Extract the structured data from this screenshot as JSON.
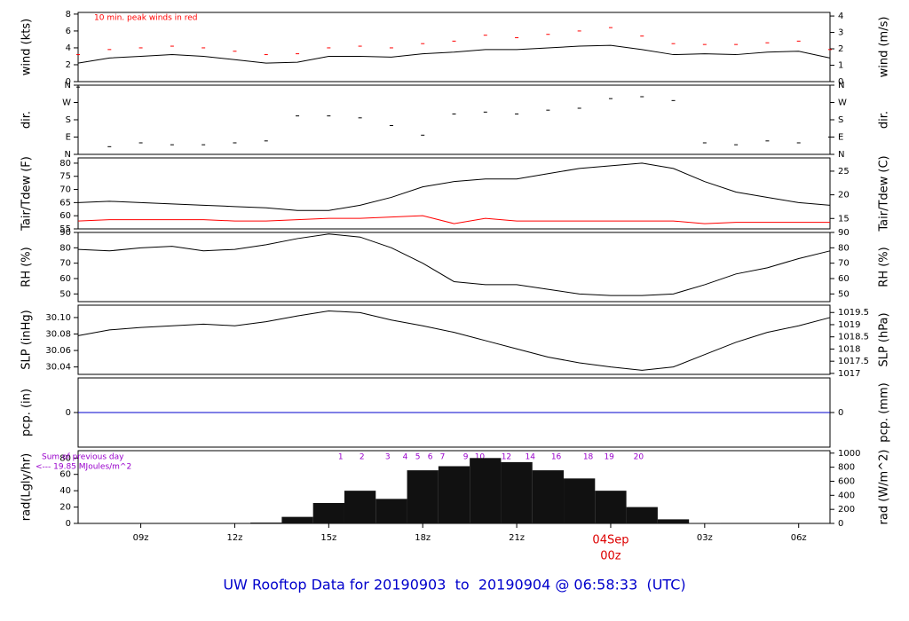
{
  "chart_data": [
    {
      "type": "line",
      "ylabel": "wind (kts)",
      "y2label": "wind (m/s)",
      "annotation": "10 min. peak winds in red",
      "x": [
        7,
        8,
        9,
        10,
        11,
        12,
        13,
        14,
        15,
        16,
        17,
        18,
        19,
        20,
        21,
        22,
        23,
        24,
        25,
        26,
        27,
        28,
        29,
        30,
        31
      ],
      "xlim": [
        7,
        31
      ],
      "ylim": [
        0,
        8.2
      ],
      "yticks": [
        0,
        2,
        4,
        6,
        8
      ],
      "y2lim": [
        0,
        4.22
      ],
      "y2ticks": [
        0,
        1,
        2,
        3,
        4
      ],
      "series": [
        {
          "style": "line",
          "color": "#000000",
          "values": [
            2.2,
            2.8,
            3.0,
            3.2,
            3.0,
            2.6,
            2.2,
            2.3,
            3.0,
            3.0,
            2.9,
            3.3,
            3.5,
            3.8,
            3.8,
            4.0,
            4.2,
            4.3,
            3.8,
            3.2,
            3.3,
            3.2,
            3.5,
            3.6,
            2.8
          ]
        },
        {
          "style": "dash",
          "color": "#ff0000",
          "values": [
            3.2,
            3.8,
            4.0,
            4.2,
            4.0,
            3.6,
            3.2,
            3.3,
            4.0,
            4.2,
            4.0,
            4.5,
            4.8,
            5.5,
            5.2,
            5.6,
            6.0,
            6.4,
            5.4,
            4.5,
            4.4,
            4.4,
            4.6,
            4.8,
            3.8
          ]
        }
      ]
    },
    {
      "type": "scatter",
      "ylabel": "dir.",
      "y2label": "dir.",
      "x": [
        7,
        8,
        9,
        10,
        11,
        12,
        13,
        14,
        15,
        16,
        17,
        18,
        19,
        20,
        21,
        22,
        23,
        24,
        25,
        26,
        27,
        28,
        29,
        30,
        31
      ],
      "xlim": [
        7,
        31
      ],
      "ylim": [
        0,
        360
      ],
      "yticks": [
        {
          "value": 0,
          "label": "N"
        },
        {
          "value": 90,
          "label": "E"
        },
        {
          "value": 180,
          "label": "S"
        },
        {
          "value": 270,
          "label": "W"
        },
        {
          "value": 360,
          "label": "N"
        }
      ],
      "y2lim": [
        0,
        360
      ],
      "y2ticks": [
        {
          "value": 0,
          "label": "N"
        },
        {
          "value": 90,
          "label": "E"
        },
        {
          "value": 180,
          "label": "S"
        },
        {
          "value": 270,
          "label": "W"
        },
        {
          "value": 360,
          "label": "N"
        }
      ],
      "series": [
        {
          "style": "dash",
          "color": "#000000",
          "values": [
            350,
            40,
            60,
            50,
            50,
            60,
            70,
            200,
            200,
            190,
            150,
            100,
            210,
            220,
            210,
            230,
            240,
            290,
            300,
            280,
            60,
            50,
            70,
            60,
            90
          ]
        }
      ]
    },
    {
      "type": "line",
      "ylabel": "Tair/Tdew (F)",
      "y2label": "Tair/Tdew (C)",
      "x": [
        7,
        8,
        9,
        10,
        11,
        12,
        13,
        14,
        15,
        16,
        17,
        18,
        19,
        20,
        21,
        22,
        23,
        24,
        25,
        26,
        27,
        28,
        29,
        30,
        31
      ],
      "xlim": [
        7,
        31
      ],
      "ylim": [
        55,
        82
      ],
      "yticks": [
        55,
        60,
        65,
        70,
        75,
        80
      ],
      "y2lim": [
        12.8,
        27.8
      ],
      "y2ticks": [
        15,
        20,
        25
      ],
      "series": [
        {
          "style": "line",
          "color": "#000000",
          "values": [
            65,
            65.5,
            65,
            64.5,
            64,
            63.5,
            63,
            62,
            62,
            64,
            67,
            71,
            73,
            74,
            74,
            76,
            78,
            79,
            80,
            78,
            73,
            69,
            67,
            65,
            64
          ]
        },
        {
          "style": "line",
          "color": "#ff0000",
          "values": [
            58,
            58.5,
            58.5,
            58.5,
            58.5,
            58,
            58,
            58.5,
            59,
            59,
            59.5,
            60,
            57,
            59,
            58,
            58,
            58,
            58,
            58,
            58,
            57,
            57.5,
            57.5,
            57.5,
            57.5
          ]
        }
      ]
    },
    {
      "type": "line",
      "ylabel": "RH (%)",
      "y2label": "RH (%)",
      "x": [
        7,
        8,
        9,
        10,
        11,
        12,
        13,
        14,
        15,
        16,
        17,
        18,
        19,
        20,
        21,
        22,
        23,
        24,
        25,
        26,
        27,
        28,
        29,
        30,
        31
      ],
      "xlim": [
        7,
        31
      ],
      "ylim": [
        45,
        90
      ],
      "yticks": [
        50,
        60,
        70,
        80,
        90
      ],
      "y2lim": [
        45,
        90
      ],
      "y2ticks": [
        50,
        60,
        70,
        80,
        90
      ],
      "series": [
        {
          "style": "line",
          "color": "#000000",
          "values": [
            79,
            78,
            80,
            81,
            78,
            79,
            82,
            86,
            89,
            87,
            80,
            70,
            58,
            56,
            56,
            53,
            50,
            49,
            49,
            50,
            56,
            63,
            67,
            73,
            78
          ]
        }
      ]
    },
    {
      "type": "line",
      "ylabel": "SLP (inHg)",
      "y2label": "SLP (hPa)",
      "x": [
        7,
        8,
        9,
        10,
        11,
        12,
        13,
        14,
        15,
        16,
        17,
        18,
        19,
        20,
        21,
        22,
        23,
        24,
        25,
        26,
        27,
        28,
        29,
        30,
        31
      ],
      "xlim": [
        7,
        31
      ],
      "ylim": [
        30.031,
        30.115
      ],
      "yticks": [
        30.04,
        30.06,
        30.08,
        {
          "value": 30.1,
          "label": "30.10"
        }
      ],
      "y2lim": [
        1016.96,
        1019.8
      ],
      "y2ticks": [
        1017,
        1017.5,
        1018,
        1018.5,
        1019,
        1019.5
      ],
      "series": [
        {
          "style": "line",
          "color": "#000000",
          "values": [
            30.078,
            30.085,
            30.088,
            30.09,
            30.092,
            30.09,
            30.095,
            30.102,
            30.108,
            30.106,
            30.097,
            30.09,
            30.082,
            30.072,
            30.062,
            30.052,
            30.045,
            30.04,
            30.036,
            30.04,
            30.055,
            30.07,
            30.082,
            30.09,
            30.1
          ]
        }
      ]
    },
    {
      "type": "line",
      "ylabel": "pcp. (in)",
      "y2label": "pcp. (mm)",
      "x": [
        7,
        8,
        9,
        10,
        11,
        12,
        13,
        14,
        15,
        16,
        17,
        18,
        19,
        20,
        21,
        22,
        23,
        24,
        25,
        26,
        27,
        28,
        29,
        30,
        31
      ],
      "xlim": [
        7,
        31
      ],
      "ylim": [
        -1,
        1
      ],
      "yticks": [
        0
      ],
      "y2lim": [
        -25.4,
        25.4
      ],
      "y2ticks": [
        0
      ],
      "series": [
        {
          "style": "line",
          "color": "#0000cc",
          "values": [
            0,
            0,
            0,
            0,
            0,
            0,
            0,
            0,
            0,
            0,
            0,
            0,
            0,
            0,
            0,
            0,
            0,
            0,
            0,
            0,
            0,
            0,
            0,
            0,
            0
          ]
        }
      ]
    },
    {
      "type": "bar",
      "ylabel": "rad(Lgly/hr)",
      "y2label": "rad (W/m^2)",
      "annotations": [
        "Sum of previous day",
        "<--- 19.85 MJoules/m^2"
      ],
      "hour_marks": {
        "labels": [
          "1",
          "2",
          "3",
          "4",
          "5",
          "6",
          "7",
          "9",
          "10",
          "12",
          "14",
          "16",
          "18",
          "19",
          "20"
        ],
        "x": [
          15.38,
          16.06,
          16.88,
          17.44,
          17.84,
          18.24,
          18.63,
          19.37,
          19.82,
          20.67,
          21.43,
          22.26,
          23.28,
          23.95,
          24.89
        ]
      },
      "x": [
        7,
        8,
        9,
        10,
        11,
        12,
        13,
        14,
        15,
        16,
        17,
        18,
        19,
        20,
        21,
        22,
        23,
        24,
        25,
        26,
        27,
        28,
        29,
        30,
        31
      ],
      "xlim": [
        7,
        31
      ],
      "xticks": [
        {
          "value": 9,
          "label": "09z"
        },
        {
          "value": 12,
          "label": "12z"
        },
        {
          "value": 15,
          "label": "15z"
        },
        {
          "value": 18,
          "label": "18z"
        },
        {
          "value": 21,
          "label": "21z"
        },
        {
          "value": 24,
          "label": "00z"
        },
        {
          "value": 27,
          "label": "03z"
        },
        {
          "value": 30,
          "label": "06z"
        }
      ],
      "date_label": "04Sep",
      "ylim": [
        0,
        89
      ],
      "yticks": [
        0,
        20,
        40,
        60,
        80
      ],
      "y2lim": [
        0,
        1035
      ],
      "y2ticks": [
        0,
        200,
        400,
        600,
        800,
        1000
      ],
      "series": [
        {
          "style": "bar",
          "color": "#111111",
          "values": [
            0,
            0,
            0,
            0,
            0,
            0,
            1,
            8,
            25,
            40,
            30,
            65,
            70,
            80,
            75,
            65,
            55,
            40,
            20,
            5,
            0.5,
            0,
            0,
            0,
            0
          ]
        }
      ]
    }
  ],
  "footer": "UW Rooftop Data for 20190903  to  20190904 @ 06:58:33  (UTC)"
}
